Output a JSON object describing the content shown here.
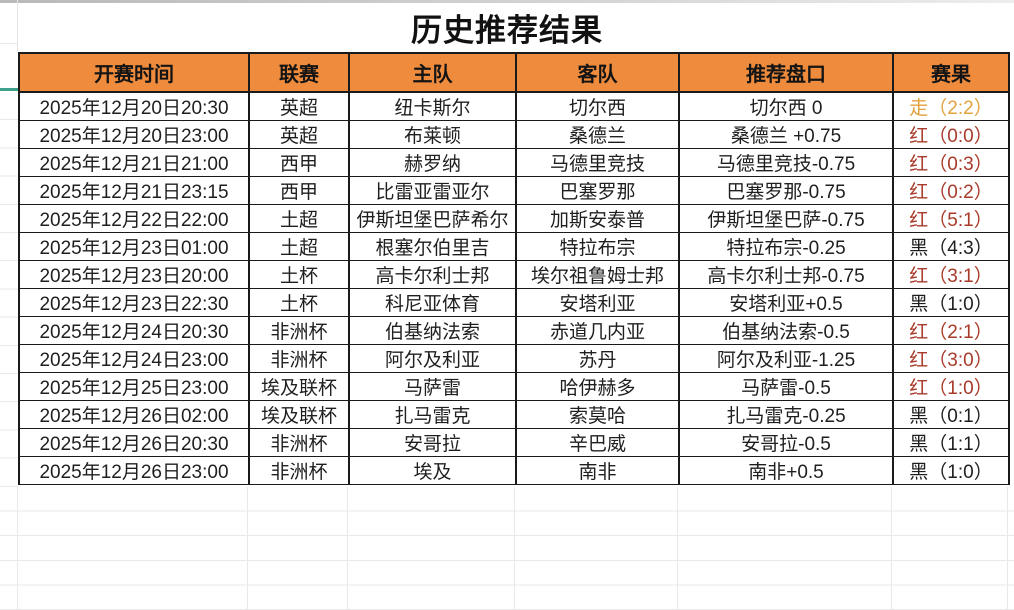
{
  "title": "历史推荐结果",
  "colors": {
    "header_bg": "#ee8b3d",
    "border": "#1a1a1a",
    "result_red": "#a83a2a",
    "result_push": "#e3a33c",
    "result_black": "#1f1f1f",
    "frozen_line": "#3ea18c"
  },
  "table": {
    "columns": [
      {
        "key": "time",
        "label": "开赛时间"
      },
      {
        "key": "league",
        "label": "联赛"
      },
      {
        "key": "home",
        "label": "主队"
      },
      {
        "key": "away",
        "label": "客队"
      },
      {
        "key": "handicap",
        "label": "推荐盘口"
      },
      {
        "key": "result",
        "label": "赛果"
      }
    ],
    "rows": [
      {
        "time": "2025年12月20日20:30",
        "league": "英超",
        "home": "纽卡斯尔",
        "away": "切尔西",
        "handicap": "切尔西 0",
        "result": {
          "text": "走（2:2）",
          "status": "push"
        }
      },
      {
        "time": "2025年12月20日23:00",
        "league": "英超",
        "home": "布莱顿",
        "away": "桑德兰",
        "handicap": "桑德兰 +0.75",
        "result": {
          "text": "红（0:0）",
          "status": "red"
        }
      },
      {
        "time": "2025年12月21日21:00",
        "league": "西甲",
        "home": "赫罗纳",
        "away": "马德里竞技",
        "handicap": "马德里竞技-0.75",
        "result": {
          "text": "红（0:3）",
          "status": "red"
        }
      },
      {
        "time": "2025年12月21日23:15",
        "league": "西甲",
        "home": "比雷亚雷亚尔",
        "away": "巴塞罗那",
        "handicap": "巴塞罗那-0.75",
        "result": {
          "text": "红（0:2）",
          "status": "red"
        }
      },
      {
        "time": "2025年12月22日22:00",
        "league": "土超",
        "home": "伊斯坦堡巴萨希尔",
        "away": "加斯安泰普",
        "handicap": "伊斯坦堡巴萨-0.75",
        "result": {
          "text": "红（5:1）",
          "status": "red"
        }
      },
      {
        "time": "2025年12月23日01:00",
        "league": "土超",
        "home": "根塞尔伯里吉",
        "away": "特拉布宗",
        "handicap": "特拉布宗-0.25",
        "result": {
          "text": "黑（4:3）",
          "status": "black"
        }
      },
      {
        "time": "2025年12月23日20:00",
        "league": "土杯",
        "home": "高卡尔利士邦",
        "away": "埃尔祖鲁姆士邦",
        "handicap": "高卡尔利士邦-0.75",
        "result": {
          "text": "红（3:1）",
          "status": "red"
        }
      },
      {
        "time": "2025年12月23日22:30",
        "league": "土杯",
        "home": "科尼亚体育",
        "away": "安塔利亚",
        "handicap": "安塔利亚+0.5",
        "result": {
          "text": "黑（1:0）",
          "status": "black"
        }
      },
      {
        "time": "2025年12月24日20:30",
        "league": "非洲杯",
        "home": "伯基纳法索",
        "away": "赤道几内亚",
        "handicap": "伯基纳法索-0.5",
        "result": {
          "text": "红（2:1）",
          "status": "red"
        }
      },
      {
        "time": "2025年12月24日23:00",
        "league": "非洲杯",
        "home": "阿尔及利亚",
        "away": "苏丹",
        "handicap": "阿尔及利亚-1.25",
        "result": {
          "text": "红（3:0）",
          "status": "red"
        }
      },
      {
        "time": "2025年12月25日23:00",
        "league": "埃及联杯",
        "home": "马萨雷",
        "away": "哈伊赫多",
        "handicap": "马萨雷-0.5",
        "result": {
          "text": "红（1:0）",
          "status": "red"
        }
      },
      {
        "time": "2025年12月26日02:00",
        "league": "埃及联杯",
        "home": "扎马雷克",
        "away": "索莫哈",
        "handicap": "扎马雷克-0.25",
        "result": {
          "text": "黑（0:1）",
          "status": "black"
        }
      },
      {
        "time": "2025年12月26日20:30",
        "league": "非洲杯",
        "home": "安哥拉",
        "away": "辛巴威",
        "handicap": "安哥拉-0.5",
        "result": {
          "text": "黑（1:1）",
          "status": "black"
        }
      },
      {
        "time": "2025年12月26日23:00",
        "league": "非洲杯",
        "home": "埃及",
        "away": "南非",
        "handicap": "南非+0.5",
        "result": {
          "text": "黑（1:0）",
          "status": "black"
        }
      }
    ]
  }
}
